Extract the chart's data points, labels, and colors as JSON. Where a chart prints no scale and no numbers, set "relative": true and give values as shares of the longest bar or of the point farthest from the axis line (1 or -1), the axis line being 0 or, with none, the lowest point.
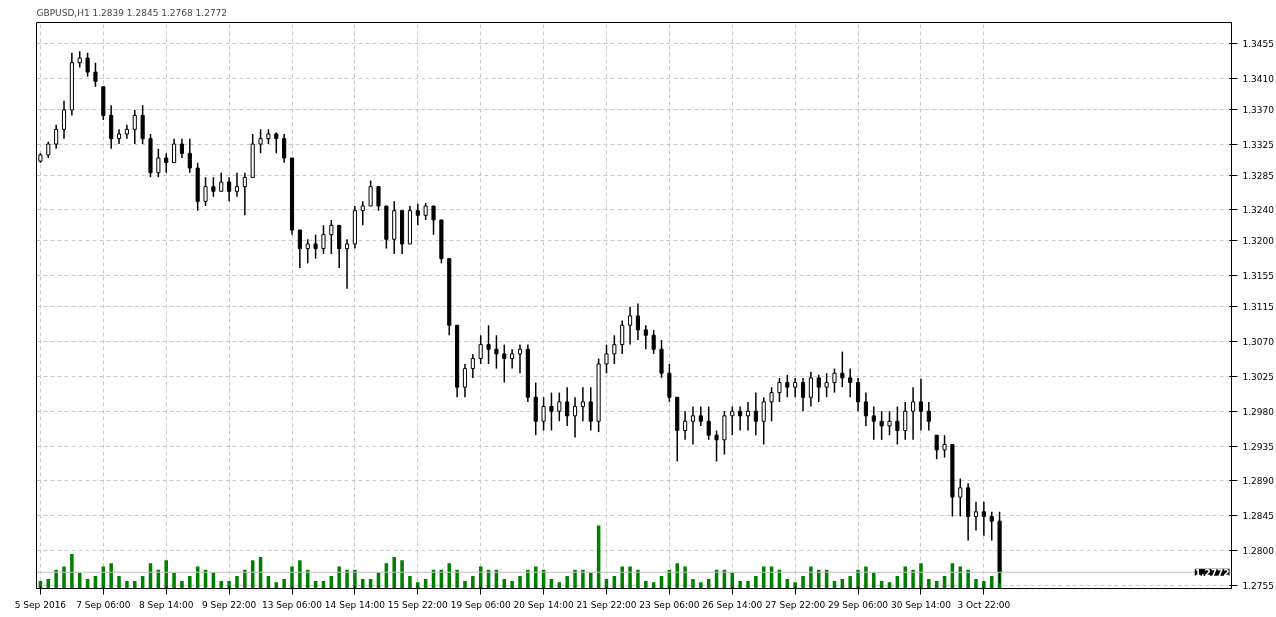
{
  "chart_data": [
    {
      "type": "candlestick",
      "title": "GBPUSD,H1  1.2839 1.2845 1.2768 1.2772",
      "categories": [
        "5 Sep 2016",
        null,
        null,
        null,
        null,
        null,
        null,
        null,
        "7 Sep 06:00",
        null,
        null,
        null,
        null,
        null,
        null,
        null,
        "8 Sep 14:00",
        null,
        null,
        null,
        null,
        null,
        null,
        null,
        "9 Sep 22:00",
        null,
        null,
        null,
        null,
        null,
        null,
        null,
        "13 Sep 06:00",
        null,
        null,
        null,
        null,
        null,
        null,
        null,
        "14 Sep 14:00",
        null,
        null,
        null,
        null,
        null,
        null,
        null,
        "15 Sep 22:00",
        null,
        null,
        null,
        null,
        null,
        null,
        null,
        "19 Sep 06:00",
        null,
        null,
        null,
        null,
        null,
        null,
        null,
        "20 Sep 14:00",
        null,
        null,
        null,
        null,
        null,
        null,
        null,
        "21 Sep 22:00",
        null,
        null,
        null,
        null,
        null,
        null,
        null,
        "23 Sep 06:00",
        null,
        null,
        null,
        null,
        null,
        null,
        null,
        "26 Sep 14:00",
        null,
        null,
        null,
        null,
        null,
        null,
        null,
        "27 Sep 22:00",
        null,
        null,
        null,
        null,
        null,
        null,
        null,
        "29 Sep 06:00",
        null,
        null,
        null,
        null,
        null,
        null,
        null,
        "30 Sep 14:00",
        null,
        null,
        null,
        null,
        null,
        null,
        null,
        "3 Oct 22:00",
        null,
        null,
        null,
        null,
        null,
        null,
        null,
        null,
        null,
        null,
        null,
        null,
        null,
        null,
        null,
        null,
        null,
        null,
        null,
        null,
        null,
        null,
        null,
        null,
        null,
        null,
        null,
        null,
        null,
        null,
        null
      ],
      "ohlc": [
        [
          1.3303,
          1.3313,
          1.3301,
          1.3311
        ],
        [
          1.3311,
          1.3328,
          1.3307,
          1.3325
        ],
        [
          1.3325,
          1.335,
          1.3319,
          1.3344
        ],
        [
          1.3344,
          1.3381,
          1.3332,
          1.3369
        ],
        [
          1.3369,
          1.3443,
          1.3362,
          1.343
        ],
        [
          1.343,
          1.3445,
          1.3424,
          1.3436
        ],
        [
          1.3436,
          1.3443,
          1.3412,
          1.3418
        ],
        [
          1.3418,
          1.343,
          1.3399,
          1.3406
        ],
        [
          1.3399,
          1.3399,
          1.3356,
          1.3362
        ],
        [
          1.3362,
          1.3375,
          1.3319,
          1.3332
        ],
        [
          1.3332,
          1.3344,
          1.3325,
          1.3338
        ],
        [
          1.3338,
          1.335,
          1.3332,
          1.3344
        ],
        [
          1.3344,
          1.3369,
          1.3325,
          1.3362
        ],
        [
          1.3362,
          1.3375,
          1.3325,
          1.3332
        ],
        [
          1.3332,
          1.3338,
          1.3282,
          1.3288
        ],
        [
          1.3288,
          1.3319,
          1.3282,
          1.3307
        ],
        [
          1.3307,
          1.3313,
          1.3288,
          1.3301
        ],
        [
          1.3301,
          1.3332,
          1.3301,
          1.3325
        ],
        [
          1.3325,
          1.3332,
          1.3307,
          1.3313
        ],
        [
          1.3313,
          1.3332,
          1.3288,
          1.3294
        ],
        [
          1.3294,
          1.3301,
          1.3239,
          1.3251
        ],
        [
          1.3251,
          1.3282,
          1.3245,
          1.327
        ],
        [
          1.327,
          1.3282,
          1.3257,
          1.3264
        ],
        [
          1.3264,
          1.3288,
          1.3264,
          1.3276
        ],
        [
          1.3276,
          1.3282,
          1.3251,
          1.3264
        ],
        [
          1.3264,
          1.3288,
          1.3257,
          1.327
        ],
        [
          1.327,
          1.3288,
          1.3233,
          1.3282
        ],
        [
          1.3282,
          1.3338,
          1.3282,
          1.3325
        ],
        [
          1.3325,
          1.3344,
          1.3313,
          1.3332
        ],
        [
          1.3332,
          1.3344,
          1.3325,
          1.3338
        ],
        [
          1.3338,
          1.334,
          1.3313,
          1.3332
        ],
        [
          1.3332,
          1.3338,
          1.3301,
          1.3307
        ],
        [
          1.3307,
          1.3307,
          1.3208,
          1.3214
        ],
        [
          1.3214,
          1.3214,
          1.3165,
          1.319
        ],
        [
          1.319,
          1.3202,
          1.3171,
          1.3196
        ],
        [
          1.3196,
          1.3208,
          1.3177,
          1.319
        ],
        [
          1.319,
          1.322,
          1.3183,
          1.3208
        ],
        [
          1.3208,
          1.3227,
          1.3183,
          1.322
        ],
        [
          1.322,
          1.322,
          1.3165,
          1.319
        ],
        [
          1.319,
          1.3202,
          1.3138,
          1.3196
        ],
        [
          1.3196,
          1.3245,
          1.319,
          1.3239
        ],
        [
          1.3239,
          1.3251,
          1.322,
          1.3245
        ],
        [
          1.3245,
          1.3278,
          1.3245,
          1.327
        ],
        [
          1.327,
          1.327,
          1.3239,
          1.3245
        ],
        [
          1.3245,
          1.3245,
          1.319,
          1.3202
        ],
        [
          1.3202,
          1.3251,
          1.3183,
          1.3239
        ],
        [
          1.3239,
          1.3239,
          1.3183,
          1.3196
        ],
        [
          1.3196,
          1.3245,
          1.3196,
          1.3239
        ],
        [
          1.3239,
          1.3248,
          1.322,
          1.3233
        ],
        [
          1.3233,
          1.3249,
          1.3227,
          1.3245
        ],
        [
          1.3245,
          1.3245,
          1.3208,
          1.3227
        ],
        [
          1.3227,
          1.3227,
          1.3171,
          1.3177
        ],
        [
          1.3177,
          1.3177,
          1.3078,
          1.3091
        ],
        [
          1.3091,
          1.3091,
          1.2998,
          1.3011
        ],
        [
          1.3011,
          1.3041,
          1.2998,
          1.3035
        ],
        [
          1.3035,
          1.3054,
          1.3023,
          1.3048
        ],
        [
          1.3048,
          1.3078,
          1.3041,
          1.3066
        ],
        [
          1.3066,
          1.3091,
          1.3041,
          1.306
        ],
        [
          1.306,
          1.3078,
          1.3035,
          1.3054
        ],
        [
          1.3054,
          1.3066,
          1.3017,
          1.3048
        ],
        [
          1.3048,
          1.306,
          1.3035,
          1.3054
        ],
        [
          1.3054,
          1.3066,
          1.3029,
          1.306
        ],
        [
          1.306,
          1.3066,
          1.2992,
          1.2998
        ],
        [
          1.2998,
          1.3017,
          1.2949,
          1.2967
        ],
        [
          1.2967,
          1.2998,
          1.2955,
          1.2986
        ],
        [
          1.2986,
          1.3004,
          1.2955,
          1.298
        ],
        [
          1.298,
          1.3004,
          1.2967,
          1.2992
        ],
        [
          1.2992,
          1.3011,
          1.2961,
          1.2974
        ],
        [
          1.2974,
          1.2998,
          1.2946,
          1.2986
        ],
        [
          1.2986,
          1.3011,
          1.2967,
          1.2992
        ],
        [
          1.2992,
          1.3011,
          1.2955,
          1.2967
        ],
        [
          1.2967,
          1.3048,
          1.2953,
          1.3041
        ],
        [
          1.3041,
          1.3066,
          1.3029,
          1.3054
        ],
        [
          1.3054,
          1.3078,
          1.3041,
          1.3066
        ],
        [
          1.3066,
          1.3097,
          1.3054,
          1.3091
        ],
        [
          1.3091,
          1.3115,
          1.3066,
          1.3103
        ],
        [
          1.3103,
          1.3119,
          1.3072,
          1.3085
        ],
        [
          1.3085,
          1.3091,
          1.306,
          1.3078
        ],
        [
          1.3078,
          1.3085,
          1.3054,
          1.306
        ],
        [
          1.306,
          1.3072,
          1.3023,
          1.3029
        ],
        [
          1.3029,
          1.3041,
          1.2992,
          1.2998
        ],
        [
          1.2998,
          1.2998,
          1.2915,
          1.2955
        ],
        [
          1.2955,
          1.298,
          1.2943,
          1.2967
        ],
        [
          1.2967,
          1.2986,
          1.2937,
          1.2974
        ],
        [
          1.2974,
          1.2986,
          1.2961,
          1.2967
        ],
        [
          1.2967,
          1.2986,
          1.2943,
          1.2949
        ],
        [
          1.2949,
          1.2955,
          1.2915,
          1.2943
        ],
        [
          1.2943,
          1.298,
          1.2924,
          1.2974
        ],
        [
          1.2974,
          1.2986,
          1.2949,
          1.298
        ],
        [
          1.298,
          1.2986,
          1.2955,
          1.2974
        ],
        [
          1.2974,
          1.2992,
          1.2955,
          1.298
        ],
        [
          1.298,
          1.3004,
          1.2949,
          1.2967
        ],
        [
          1.2967,
          1.2998,
          1.2937,
          1.2992
        ],
        [
          1.2992,
          1.3011,
          1.2967,
          1.3004
        ],
        [
          1.3004,
          1.3023,
          1.2992,
          1.3017
        ],
        [
          1.3017,
          1.3027,
          1.2998,
          1.3011
        ],
        [
          1.3011,
          1.3023,
          1.2998,
          1.3017
        ],
        [
          1.3017,
          1.3023,
          1.298,
          1.2998
        ],
        [
          1.2998,
          1.3031,
          1.2986,
          1.3023
        ],
        [
          1.3023,
          1.3027,
          1.2992,
          1.3011
        ],
        [
          1.3011,
          1.3029,
          1.2998,
          1.3017
        ],
        [
          1.3017,
          1.3035,
          1.3004,
          1.3029
        ],
        [
          1.3029,
          1.3057,
          1.3011,
          1.3023
        ],
        [
          1.3023,
          1.3035,
          1.2998,
          1.3017
        ],
        [
          1.3017,
          1.3023,
          1.298,
          1.2992
        ],
        [
          1.2992,
          1.3004,
          1.2961,
          1.2974
        ],
        [
          1.2974,
          1.2986,
          1.2943,
          1.2967
        ],
        [
          1.2967,
          1.298,
          1.2943,
          1.2961
        ],
        [
          1.2961,
          1.298,
          1.2949,
          1.2967
        ],
        [
          1.2967,
          1.2986,
          1.2937,
          1.2955
        ],
        [
          1.2955,
          1.2992,
          1.2943,
          1.298
        ],
        [
          1.298,
          1.3011,
          1.2943,
          1.2992
        ],
        [
          1.2992,
          1.3022,
          1.2955,
          1.298
        ],
        [
          1.298,
          1.2992,
          1.2955,
          1.2967
        ],
        [
          1.2949,
          1.2949,
          1.2918,
          1.293
        ],
        [
          1.293,
          1.2949,
          1.292,
          1.2937
        ],
        [
          1.2937,
          1.2937,
          1.2844,
          1.2869
        ],
        [
          1.2869,
          1.2893,
          1.2844,
          1.2881
        ],
        [
          1.2881,
          1.2887,
          1.2813,
          1.2844
        ],
        [
          1.2844,
          1.2863,
          1.2826,
          1.285
        ],
        [
          1.285,
          1.2863,
          1.2819,
          1.2844
        ],
        [
          1.2844,
          1.285,
          1.2813,
          1.2838
        ],
        [
          1.2838,
          1.285,
          1.2758,
          1.2772
        ],
        null,
        null,
        null,
        null,
        null,
        null,
        null,
        null,
        null,
        null,
        null,
        null,
        null,
        null,
        null,
        null,
        null,
        null,
        null,
        null,
        null,
        null,
        null,
        null,
        null,
        null,
        null,
        null,
        null
      ],
      "color": "#000000",
      "ylim": [
        1.2751,
        1.3482
      ],
      "yticks": [
        1.2755,
        {
          "value": 1.28,
          "label": "1.2800"
        },
        1.2845,
        {
          "value": 1.289,
          "label": "1.2890"
        },
        1.2935,
        {
          "value": 1.298,
          "label": "1.2980"
        },
        1.3025,
        {
          "value": 1.307,
          "label": "1.3070"
        },
        1.3115,
        1.3155,
        {
          "value": 1.32,
          "label": "1.3200"
        },
        {
          "value": 1.324,
          "label": "1.3240"
        },
        1.3285,
        1.3325,
        {
          "value": 1.337,
          "label": "1.3370"
        },
        {
          "value": 1.341,
          "label": "1.3410"
        },
        1.3455
      ],
      "ref_lines": [
        {
          "axis": "y",
          "value": 1.2772,
          "label": "1.2772",
          "color": "#c0c0c0"
        }
      ],
      "grid": true
    },
    {
      "type": "bar",
      "relative": true,
      "color": "#008000",
      "categories": [
        null,
        null,
        null,
        null,
        null,
        null,
        null,
        null,
        null,
        null,
        null,
        null,
        null,
        null,
        null,
        null,
        null,
        null,
        null,
        null,
        null,
        null,
        null,
        null,
        null,
        null,
        null,
        null,
        null,
        null,
        null,
        null,
        null,
        null,
        null,
        null,
        null,
        null,
        null,
        null,
        null,
        null,
        null,
        null,
        null,
        null,
        null,
        null,
        null,
        null,
        null,
        null,
        null,
        null,
        null,
        null,
        null,
        null,
        null,
        null,
        null,
        null,
        null,
        null,
        null,
        null,
        null,
        null,
        null,
        null,
        null,
        null,
        null,
        null,
        null,
        null,
        null,
        null,
        null,
        null,
        null,
        null,
        null,
        null,
        null,
        null,
        null,
        null,
        null,
        null,
        null,
        null,
        null,
        null,
        null,
        null,
        null,
        null,
        null,
        null,
        null,
        null,
        null,
        null,
        null,
        null,
        null,
        null,
        null,
        null,
        null,
        null,
        null,
        null,
        null,
        null,
        null,
        null,
        null,
        null,
        null,
        null,
        null,
        null,
        null,
        null,
        null,
        null,
        null,
        null,
        null,
        null,
        null,
        null,
        null,
        null,
        null,
        null,
        null,
        null,
        null,
        null,
        null,
        null,
        null,
        null,
        null,
        null,
        null,
        null,
        null,
        null
      ],
      "values": [
        0.12,
        0.15,
        0.3,
        0.35,
        0.55,
        0.25,
        0.15,
        0.2,
        0.35,
        0.4,
        0.2,
        0.12,
        0.12,
        0.2,
        0.4,
        0.3,
        0.45,
        0.25,
        0.12,
        0.2,
        0.35,
        0.3,
        0.25,
        0.12,
        0.12,
        0.2,
        0.3,
        0.45,
        0.5,
        0.2,
        0.1,
        0.15,
        0.35,
        0.45,
        0.3,
        0.12,
        0.12,
        0.2,
        0.35,
        0.3,
        0.3,
        0.15,
        0.15,
        0.25,
        0.4,
        0.5,
        0.45,
        0.2,
        0.1,
        0.15,
        0.3,
        0.3,
        0.4,
        0.3,
        0.12,
        0.2,
        0.35,
        0.3,
        0.3,
        0.15,
        0.12,
        0.2,
        0.3,
        0.35,
        0.3,
        0.15,
        0.1,
        0.2,
        0.3,
        0.3,
        0.25,
        1.0,
        0.15,
        0.2,
        0.35,
        0.35,
        0.3,
        0.12,
        0.1,
        0.2,
        0.3,
        0.4,
        0.35,
        0.15,
        0.1,
        0.15,
        0.3,
        0.3,
        0.25,
        0.12,
        0.12,
        0.2,
        0.35,
        0.35,
        0.3,
        0.15,
        0.1,
        0.2,
        0.35,
        0.3,
        0.3,
        0.12,
        0.15,
        0.2,
        0.3,
        0.35,
        0.25,
        0.12,
        0.1,
        0.2,
        0.35,
        0.3,
        0.4,
        0.15,
        0.12,
        0.2,
        0.4,
        0.35,
        0.3,
        0.15,
        0.12,
        0.2,
        0.3,
        null,
        null,
        null,
        null,
        null,
        null,
        null,
        null,
        null,
        null,
        null,
        null,
        null,
        null,
        null,
        null,
        null,
        null,
        null,
        null,
        null,
        null,
        null,
        null,
        null,
        null,
        null,
        null,
        null
      ],
      "grid": true
    }
  ]
}
